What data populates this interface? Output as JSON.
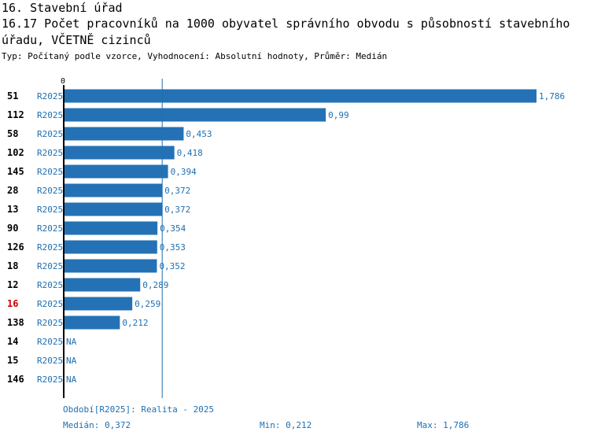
{
  "header": {
    "line1": "16. Stavební úřad",
    "line2": "16.17 Počet pracovníků na 1000 obyvatel správního obvodu s působností stavebního",
    "line3": "úřadu, VČETNĚ cizinců",
    "subtitle": "Typ: Počítaný podle vzorce, Vyhodnocení: Absolutní hodnoty, Průměr: Medián"
  },
  "chart_data": {
    "type": "bar",
    "orientation": "horizontal",
    "zero_label": "0",
    "xlim": [
      0,
      1.786
    ],
    "median": 0.372,
    "bar_color": "#2472b5",
    "highlight_color": "#cc0000",
    "text_color": "#1f6fb0",
    "rows": [
      {
        "id": "51",
        "period": "R2025",
        "value": 1.786,
        "label": "1,786",
        "highlight": false
      },
      {
        "id": "112",
        "period": "R2025",
        "value": 0.99,
        "label": "0,99",
        "highlight": false
      },
      {
        "id": "58",
        "period": "R2025",
        "value": 0.453,
        "label": "0,453",
        "highlight": false
      },
      {
        "id": "102",
        "period": "R2025",
        "value": 0.418,
        "label": "0,418",
        "highlight": false
      },
      {
        "id": "145",
        "period": "R2025",
        "value": 0.394,
        "label": "0,394",
        "highlight": false
      },
      {
        "id": "28",
        "period": "R2025",
        "value": 0.372,
        "label": "0,372",
        "highlight": false
      },
      {
        "id": "13",
        "period": "R2025",
        "value": 0.372,
        "label": "0,372",
        "highlight": false
      },
      {
        "id": "90",
        "period": "R2025",
        "value": 0.354,
        "label": "0,354",
        "highlight": false
      },
      {
        "id": "126",
        "period": "R2025",
        "value": 0.353,
        "label": "0,353",
        "highlight": false
      },
      {
        "id": "18",
        "period": "R2025",
        "value": 0.352,
        "label": "0,352",
        "highlight": false
      },
      {
        "id": "12",
        "period": "R2025",
        "value": 0.289,
        "label": "0,289",
        "highlight": false
      },
      {
        "id": "16",
        "period": "R2025",
        "value": 0.259,
        "label": "0,259",
        "highlight": true
      },
      {
        "id": "138",
        "period": "R2025",
        "value": 0.212,
        "label": "0,212",
        "highlight": false
      },
      {
        "id": "14",
        "period": "R2025",
        "value": null,
        "label": "NA",
        "highlight": false
      },
      {
        "id": "15",
        "period": "R2025",
        "value": null,
        "label": "NA",
        "highlight": false
      },
      {
        "id": "146",
        "period": "R2025",
        "value": null,
        "label": "NA",
        "highlight": false
      }
    ]
  },
  "footer": {
    "period": "Období[R2025]: Realita - 2025",
    "median": "Medián: 0,372",
    "min": "Min: 0,212",
    "max": "Max: 1,786"
  }
}
